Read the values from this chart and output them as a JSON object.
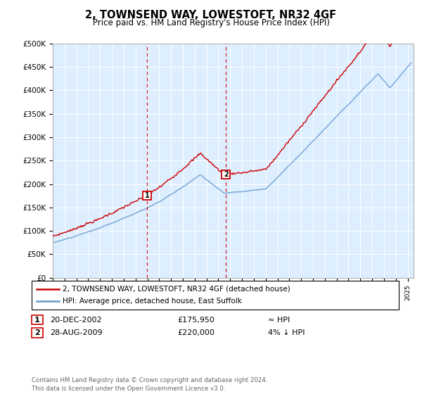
{
  "title": "2, TOWNSEND WAY, LOWESTOFT, NR32 4GF",
  "subtitle": "Price paid vs. HM Land Registry's House Price Index (HPI)",
  "ylabel_ticks": [
    "£0",
    "£50K",
    "£100K",
    "£150K",
    "£200K",
    "£250K",
    "£300K",
    "£350K",
    "£400K",
    "£450K",
    "£500K"
  ],
  "ytick_vals": [
    0,
    50000,
    100000,
    150000,
    200000,
    250000,
    300000,
    350000,
    400000,
    450000,
    500000
  ],
  "ylim": [
    0,
    500000
  ],
  "xlim_start": 1995.0,
  "xlim_end": 2025.5,
  "sale1_x": 2002.97,
  "sale1_y": 175950,
  "sale2_x": 2009.65,
  "sale2_y": 220000,
  "line_color_property": "#cc0000",
  "line_color_hpi": "#6699cc",
  "background_color": "#ddeeff",
  "grid_color": "#ffffff",
  "legend_label_property": "2, TOWNSEND WAY, LOWESTOFT, NR32 4GF (detached house)",
  "legend_label_hpi": "HPI: Average price, detached house, East Suffolk",
  "table_row1_num": "1",
  "table_row1_date": "20-DEC-2002",
  "table_row1_price": "£175,950",
  "table_row1_note": "≈ HPI",
  "table_row2_num": "2",
  "table_row2_date": "28-AUG-2009",
  "table_row2_price": "£220,000",
  "table_row2_note": "4% ↓ HPI",
  "footer": "Contains HM Land Registry data © Crown copyright and database right 2024.\nThis data is licensed under the Open Government Licence v3.0."
}
